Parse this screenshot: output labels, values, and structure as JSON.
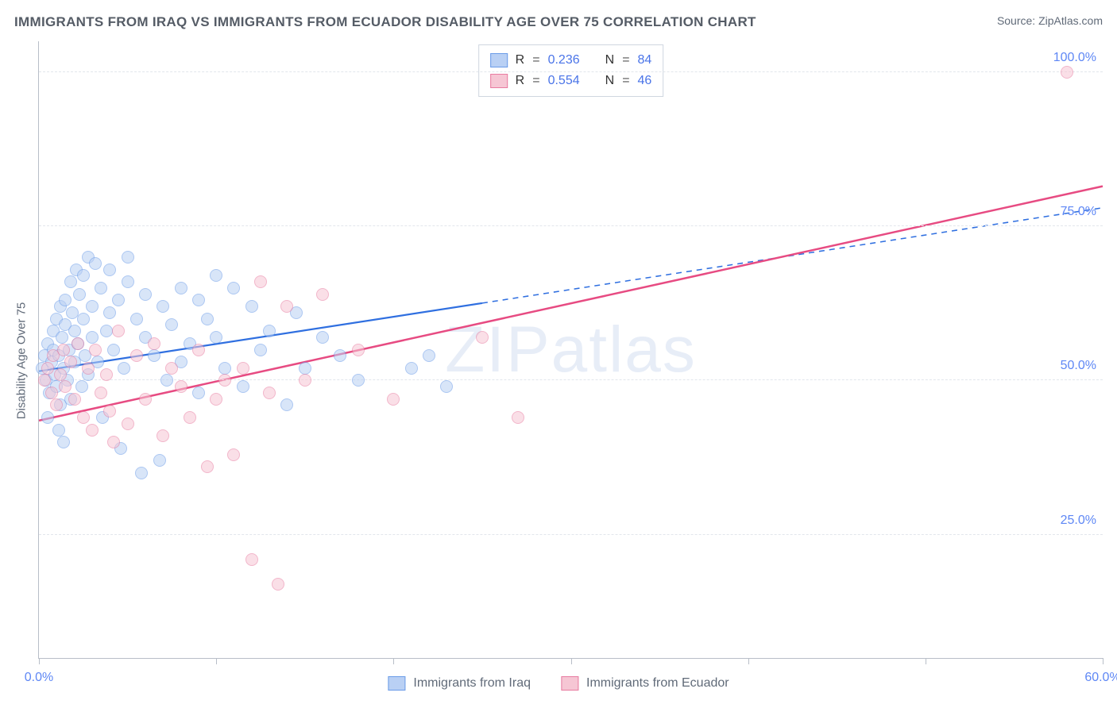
{
  "title": "IMMIGRANTS FROM IRAQ VS IMMIGRANTS FROM ECUADOR DISABILITY AGE OVER 75 CORRELATION CHART",
  "source_prefix": "Source: ",
  "source_name": "ZipAtlas.com",
  "ylabel": "Disability Age Over 75",
  "watermark": "ZIPatlas",
  "chart": {
    "type": "scatter",
    "background_color": "#ffffff",
    "grid_color": "#e2e6ec",
    "axis_color": "#b8bec8",
    "tick_label_color": "#5e87f5",
    "xlim": [
      0,
      60
    ],
    "ylim": [
      5,
      105
    ],
    "yticks": [
      25,
      50,
      75,
      100
    ],
    "ytick_labels": [
      "25.0%",
      "50.0%",
      "75.0%",
      "100.0%"
    ],
    "xtick_positions": [
      0,
      10,
      20,
      30,
      40,
      50,
      60
    ],
    "xtick_labels": {
      "0": "0.0%",
      "60": "60.0%"
    },
    "point_radius": 8,
    "point_opacity": 0.55,
    "series": [
      {
        "id": "iraq",
        "label": "Immigrants from Iraq",
        "color_fill": "#b9d0f4",
        "color_stroke": "#6a9be8",
        "r_label": "R",
        "r_value": "0.236",
        "n_label": "N",
        "n_value": "84",
        "trend": {
          "color": "#2f6fe0",
          "width": 2.2,
          "solid_end_x": 25,
          "x0": 0,
          "y0": 51.5,
          "x1": 60,
          "y1": 78
        },
        "points": [
          [
            0.2,
            52
          ],
          [
            0.3,
            54
          ],
          [
            0.4,
            50
          ],
          [
            0.5,
            56
          ],
          [
            0.6,
            48
          ],
          [
            0.7,
            53
          ],
          [
            0.8,
            55
          ],
          [
            0.8,
            58
          ],
          [
            0.9,
            51
          ],
          [
            1.0,
            60
          ],
          [
            1.0,
            49
          ],
          [
            1.1,
            54
          ],
          [
            1.2,
            62
          ],
          [
            1.2,
            46
          ],
          [
            1.3,
            57
          ],
          [
            1.4,
            52
          ],
          [
            1.5,
            59
          ],
          [
            1.5,
            63
          ],
          [
            1.6,
            50
          ],
          [
            1.7,
            55
          ],
          [
            1.8,
            66
          ],
          [
            1.8,
            47
          ],
          [
            1.9,
            61
          ],
          [
            2.0,
            53
          ],
          [
            2.0,
            58
          ],
          [
            2.1,
            68
          ],
          [
            2.2,
            56
          ],
          [
            2.3,
            64
          ],
          [
            2.4,
            49
          ],
          [
            2.5,
            60
          ],
          [
            2.5,
            67
          ],
          [
            2.6,
            54
          ],
          [
            2.8,
            70
          ],
          [
            2.8,
            51
          ],
          [
            3.0,
            62
          ],
          [
            3.0,
            57
          ],
          [
            3.2,
            69
          ],
          [
            3.3,
            53
          ],
          [
            3.5,
            65
          ],
          [
            3.6,
            44
          ],
          [
            3.8,
            58
          ],
          [
            4.0,
            61
          ],
          [
            4.0,
            68
          ],
          [
            4.2,
            55
          ],
          [
            4.5,
            63
          ],
          [
            4.6,
            39
          ],
          [
            4.8,
            52
          ],
          [
            5.0,
            66
          ],
          [
            5.0,
            70
          ],
          [
            5.5,
            60
          ],
          [
            5.8,
            35
          ],
          [
            6.0,
            57
          ],
          [
            6.0,
            64
          ],
          [
            6.5,
            54
          ],
          [
            6.8,
            37
          ],
          [
            7.0,
            62
          ],
          [
            7.2,
            50
          ],
          [
            7.5,
            59
          ],
          [
            8.0,
            65
          ],
          [
            8.0,
            53
          ],
          [
            8.5,
            56
          ],
          [
            9.0,
            63
          ],
          [
            9.0,
            48
          ],
          [
            9.5,
            60
          ],
          [
            10.0,
            57
          ],
          [
            10.0,
            67
          ],
          [
            10.5,
            52
          ],
          [
            11.0,
            65
          ],
          [
            11.5,
            49
          ],
          [
            12.0,
            62
          ],
          [
            12.5,
            55
          ],
          [
            13.0,
            58
          ],
          [
            14.0,
            46
          ],
          [
            14.5,
            61
          ],
          [
            15.0,
            52
          ],
          [
            16.0,
            57
          ],
          [
            17.0,
            54
          ],
          [
            18.0,
            50
          ],
          [
            21.0,
            52
          ],
          [
            22.0,
            54
          ],
          [
            23.0,
            49
          ],
          [
            0.5,
            44
          ],
          [
            1.1,
            42
          ],
          [
            1.4,
            40
          ]
        ]
      },
      {
        "id": "ecuador",
        "label": "Immigrants from Ecuador",
        "color_fill": "#f6c6d4",
        "color_stroke": "#e87ba0",
        "r_label": "R",
        "r_value": "0.554",
        "n_label": "N",
        "n_value": "46",
        "trend": {
          "color": "#e74b82",
          "width": 2.5,
          "solid_end_x": 60,
          "x0": 0,
          "y0": 43.5,
          "x1": 60,
          "y1": 81.5
        },
        "points": [
          [
            0.3,
            50
          ],
          [
            0.5,
            52
          ],
          [
            0.7,
            48
          ],
          [
            0.8,
            54
          ],
          [
            1.0,
            46
          ],
          [
            1.2,
            51
          ],
          [
            1.4,
            55
          ],
          [
            1.5,
            49
          ],
          [
            1.8,
            53
          ],
          [
            2.0,
            47
          ],
          [
            2.2,
            56
          ],
          [
            2.5,
            44
          ],
          [
            2.8,
            52
          ],
          [
            3.0,
            42
          ],
          [
            3.2,
            55
          ],
          [
            3.5,
            48
          ],
          [
            3.8,
            51
          ],
          [
            4.0,
            45
          ],
          [
            4.5,
            58
          ],
          [
            5.0,
            43
          ],
          [
            5.5,
            54
          ],
          [
            6.0,
            47
          ],
          [
            6.5,
            56
          ],
          [
            7.0,
            41
          ],
          [
            7.5,
            52
          ],
          [
            8.0,
            49
          ],
          [
            8.5,
            44
          ],
          [
            9.0,
            55
          ],
          [
            9.5,
            36
          ],
          [
            10.0,
            47
          ],
          [
            10.5,
            50
          ],
          [
            11.0,
            38
          ],
          [
            11.5,
            52
          ],
          [
            12.0,
            21
          ],
          [
            12.5,
            66
          ],
          [
            13.0,
            48
          ],
          [
            13.5,
            17
          ],
          [
            14.0,
            62
          ],
          [
            15.0,
            50
          ],
          [
            16.0,
            64
          ],
          [
            18.0,
            55
          ],
          [
            20.0,
            47
          ],
          [
            25.0,
            57
          ],
          [
            27.0,
            44
          ],
          [
            58.0,
            100
          ],
          [
            4.2,
            40
          ]
        ]
      }
    ]
  }
}
